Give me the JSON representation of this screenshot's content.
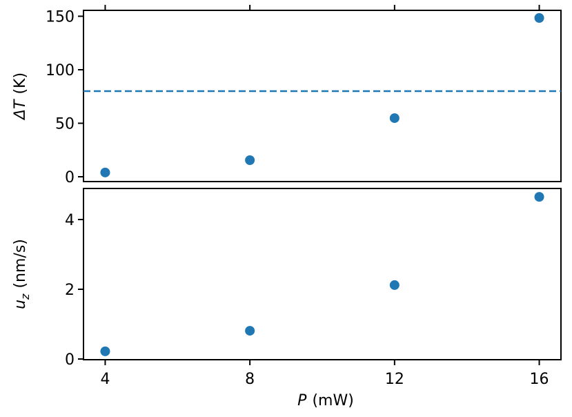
{
  "chart_data": [
    {
      "type": "scatter",
      "ylabel": {
        "symbol": "ΔT",
        "unit": "(K)"
      },
      "x": [
        4,
        8,
        12,
        16
      ],
      "values": [
        4,
        15.5,
        54.8,
        148.4
      ],
      "color": "#1f77b4",
      "xlim": [
        3.4,
        16.6
      ],
      "xticks": [
        4,
        8,
        12,
        16
      ],
      "xtick_side": "top",
      "ylim": [
        -4.5,
        155.5
      ],
      "yticks": [
        0,
        50,
        100,
        150
      ],
      "hline": {
        "value": 80,
        "color": "#1f77b4",
        "style": "dashed"
      }
    },
    {
      "type": "scatter",
      "ylabel": {
        "symbol": "u",
        "subscript": "z",
        "unit": "(nm/s)"
      },
      "xlabel": {
        "symbol": "P",
        "unit": "(mW)"
      },
      "x": [
        4,
        8,
        12,
        16
      ],
      "values": [
        0.22,
        0.81,
        2.12,
        4.65
      ],
      "color": "#1f77b4",
      "xlim": [
        3.4,
        16.6
      ],
      "xticks": [
        4,
        8,
        12,
        16
      ],
      "xtick_side": "bottom",
      "ylim": [
        -0.02,
        4.89
      ],
      "yticks": [
        0,
        2,
        4
      ]
    }
  ]
}
